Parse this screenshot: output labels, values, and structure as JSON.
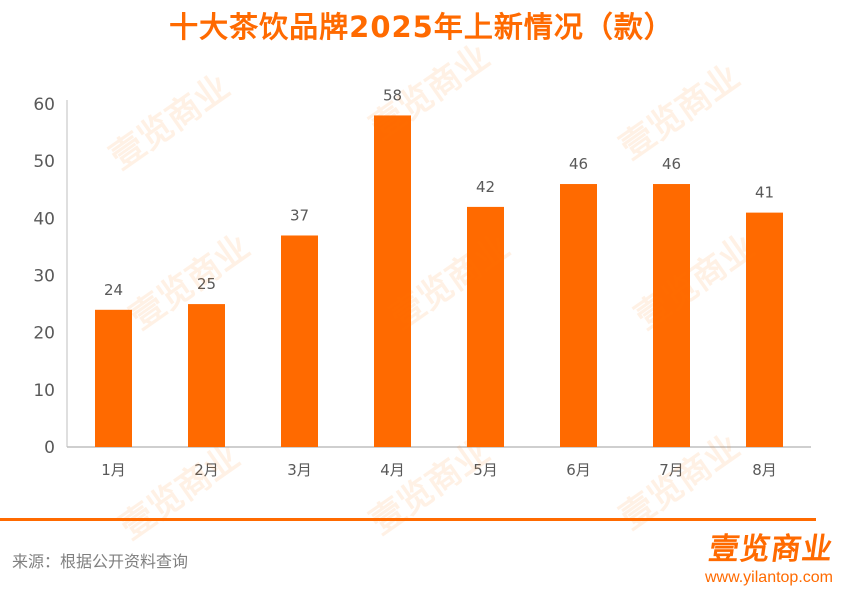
{
  "colors": {
    "accent": "#FF6A00",
    "axis": "#BFBFBF",
    "text": "#595959",
    "source_text": "#808080"
  },
  "header": {
    "title": "十大茶饮品牌2025年上新情况（款）"
  },
  "footer": {
    "source": "来源：根据公开资料查询",
    "brand_logo": "壹览商业",
    "brand_url": "www.yilantop.com"
  },
  "watermark": "壹览商业",
  "chart_data": {
    "type": "bar",
    "title": "十大茶饮品牌2025年上新情况（款）",
    "xlabel": "",
    "ylabel": "",
    "categories": [
      "1月",
      "2月",
      "3月",
      "4月",
      "5月",
      "6月",
      "7月",
      "8月"
    ],
    "series": [
      {
        "values": [
          24,
          25,
          37,
          58,
          42,
          46,
          46,
          41
        ]
      }
    ],
    "ylim": [
      0,
      60
    ],
    "yticks": [
      0,
      10,
      20,
      30,
      40,
      50,
      60
    ],
    "data_labels": true,
    "grid": false,
    "legend": "none"
  }
}
